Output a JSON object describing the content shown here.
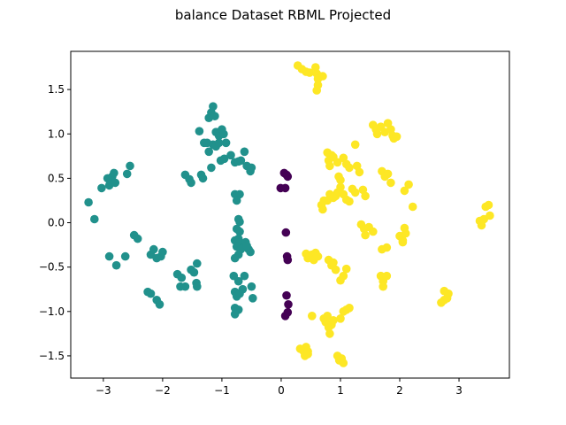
{
  "chart_data": {
    "type": "scatter",
    "title": "balance Dataset RBML Projected",
    "xlabel": "",
    "ylabel": "",
    "xlim": [
      -3.55,
      3.85
    ],
    "ylim": [
      -1.75,
      1.93
    ],
    "xticks": [
      -3,
      -2,
      -1,
      0,
      1,
      2,
      3
    ],
    "yticks": [
      -1.5,
      -1.0,
      -0.5,
      0.0,
      0.5,
      1.0,
      1.5
    ],
    "xtick_labels": [
      "−3",
      "−2",
      "−1",
      "0",
      "1",
      "2",
      "3"
    ],
    "ytick_labels": [
      "−1.5",
      "−1.0",
      "−0.5",
      "0.0",
      "0.5",
      "1.0",
      "1.5"
    ],
    "grid": false,
    "colors": {
      "purple": "#440154",
      "teal": "#21918c",
      "yellow": "#fde725"
    },
    "series": [
      {
        "color": "purple",
        "points": [
          [
            0.05,
            0.56
          ],
          [
            0.09,
            0.54
          ],
          [
            0.11,
            0.52
          ],
          [
            -0.01,
            0.39
          ],
          [
            0.07,
            0.39
          ],
          [
            0.08,
            -0.11
          ],
          [
            0.1,
            -0.38
          ],
          [
            0.11,
            -0.42
          ],
          [
            0.09,
            -0.82
          ],
          [
            0.12,
            -0.92
          ],
          [
            0.11,
            -1.01
          ],
          [
            0.07,
            -1.05
          ]
        ]
      },
      {
        "color": "teal",
        "points": [
          [
            -3.25,
            0.23
          ],
          [
            -3.15,
            0.04
          ],
          [
            -3.03,
            0.39
          ],
          [
            -2.93,
            0.5
          ],
          [
            -2.9,
            0.42
          ],
          [
            -2.88,
            0.47
          ],
          [
            -2.85,
            0.52
          ],
          [
            -2.82,
            0.56
          ],
          [
            -2.8,
            0.45
          ],
          [
            -2.9,
            -0.38
          ],
          [
            -2.78,
            -0.48
          ],
          [
            -2.63,
            -0.38
          ],
          [
            -2.6,
            0.55
          ],
          [
            -2.55,
            0.64
          ],
          [
            -2.48,
            -0.14
          ],
          [
            -2.42,
            -0.18
          ],
          [
            -2.2,
            -0.36
          ],
          [
            -2.15,
            -0.3
          ],
          [
            -2.1,
            -0.4
          ],
          [
            -2.03,
            -0.38
          ],
          [
            -2.0,
            -0.33
          ],
          [
            -2.25,
            -0.78
          ],
          [
            -2.2,
            -0.8
          ],
          [
            -2.1,
            -0.87
          ],
          [
            -2.05,
            -0.92
          ],
          [
            -1.75,
            -0.58
          ],
          [
            -1.7,
            -0.72
          ],
          [
            -1.62,
            -0.72
          ],
          [
            -1.68,
            -0.62
          ],
          [
            -1.52,
            -0.53
          ],
          [
            -1.47,
            -0.56
          ],
          [
            -1.42,
            -0.46
          ],
          [
            -1.43,
            -0.68
          ],
          [
            -1.42,
            -0.72
          ],
          [
            -1.62,
            0.54
          ],
          [
            -1.55,
            0.49
          ],
          [
            -1.52,
            0.45
          ],
          [
            -1.35,
            0.54
          ],
          [
            -1.32,
            0.5
          ],
          [
            -1.38,
            1.03
          ],
          [
            -1.3,
            0.9
          ],
          [
            -1.25,
            0.9
          ],
          [
            -1.22,
            0.8
          ],
          [
            -1.22,
            1.18
          ],
          [
            -1.18,
            1.24
          ],
          [
            -1.15,
            1.31
          ],
          [
            -1.12,
            1.2
          ],
          [
            -1.15,
            0.88
          ],
          [
            -1.1,
            1.02
          ],
          [
            -1.1,
            0.86
          ],
          [
            -1.05,
            0.98
          ],
          [
            -1.0,
            1.05
          ],
          [
            -0.97,
            1.0
          ],
          [
            -0.96,
            0.72
          ],
          [
            -0.93,
            0.9
          ],
          [
            -1.02,
            0.7
          ],
          [
            -1.05,
            0.9
          ],
          [
            -1.18,
            0.62
          ],
          [
            -0.85,
            0.76
          ],
          [
            -0.78,
            0.68
          ],
          [
            -0.72,
            0.69
          ],
          [
            -0.68,
            0.7
          ],
          [
            -0.62,
            0.8
          ],
          [
            -0.58,
            0.64
          ],
          [
            -0.52,
            0.58
          ],
          [
            -0.5,
            0.62
          ],
          [
            -0.78,
            0.32
          ],
          [
            -0.74,
            0.3
          ],
          [
            -0.7,
            0.32
          ],
          [
            -0.75,
            0.25
          ],
          [
            -0.72,
            0.04
          ],
          [
            -0.7,
            0.01
          ],
          [
            -0.75,
            -0.07
          ],
          [
            -0.72,
            -0.18
          ],
          [
            -0.78,
            -0.2
          ],
          [
            -0.7,
            -0.23
          ],
          [
            -0.75,
            -0.27
          ],
          [
            -0.68,
            -0.3
          ],
          [
            -0.72,
            -0.36
          ],
          [
            -0.78,
            -0.4
          ],
          [
            -0.6,
            -0.22
          ],
          [
            -0.55,
            -0.3
          ],
          [
            -0.52,
            -0.33
          ],
          [
            -0.58,
            -0.26
          ],
          [
            -0.7,
            -0.1
          ],
          [
            -0.8,
            -0.6
          ],
          [
            -0.72,
            -0.66
          ],
          [
            -0.78,
            -0.78
          ],
          [
            -0.75,
            -0.83
          ],
          [
            -0.7,
            -0.8
          ],
          [
            -0.62,
            -0.6
          ],
          [
            -0.5,
            -0.72
          ],
          [
            -0.48,
            -0.85
          ],
          [
            -0.78,
            -0.96
          ],
          [
            -0.72,
            -0.98
          ],
          [
            -0.78,
            -1.03
          ],
          [
            -0.65,
            -0.75
          ]
        ]
      },
      {
        "color": "yellow",
        "points": [
          [
            0.28,
            1.77
          ],
          [
            0.35,
            1.73
          ],
          [
            0.42,
            1.7
          ],
          [
            0.48,
            1.69
          ],
          [
            0.58,
            1.75
          ],
          [
            0.6,
            1.68
          ],
          [
            0.62,
            1.62
          ],
          [
            0.6,
            1.49
          ],
          [
            0.62,
            1.55
          ],
          [
            0.7,
            1.65
          ],
          [
            0.78,
            0.79
          ],
          [
            0.8,
            0.7
          ],
          [
            0.85,
            0.76
          ],
          [
            0.82,
            0.64
          ],
          [
            0.88,
            0.74
          ],
          [
            0.95,
            0.68
          ],
          [
            0.97,
            0.52
          ],
          [
            1.0,
            0.48
          ],
          [
            1.05,
            0.73
          ],
          [
            1.1,
            0.66
          ],
          [
            1.15,
            0.62
          ],
          [
            1.25,
            0.88
          ],
          [
            1.28,
            0.64
          ],
          [
            1.32,
            0.57
          ],
          [
            1.38,
            0.37
          ],
          [
            1.42,
            0.3
          ],
          [
            1.2,
            0.38
          ],
          [
            1.15,
            0.24
          ],
          [
            1.1,
            0.26
          ],
          [
            1.25,
            0.34
          ],
          [
            1.05,
            0.32
          ],
          [
            1.0,
            0.4
          ],
          [
            0.95,
            0.34
          ],
          [
            0.92,
            0.3
          ],
          [
            0.88,
            0.28
          ],
          [
            0.82,
            0.32
          ],
          [
            0.78,
            0.25
          ],
          [
            0.72,
            0.25
          ],
          [
            0.68,
            0.2
          ],
          [
            0.7,
            0.15
          ],
          [
            1.55,
            1.1
          ],
          [
            1.6,
            1.05
          ],
          [
            1.62,
            1.0
          ],
          [
            1.68,
            1.08
          ],
          [
            1.75,
            1.02
          ],
          [
            1.8,
            1.12
          ],
          [
            1.85,
            1.05
          ],
          [
            1.88,
            0.98
          ],
          [
            1.9,
            0.95
          ],
          [
            1.95,
            0.97
          ],
          [
            1.7,
            0.58
          ],
          [
            1.75,
            0.52
          ],
          [
            1.8,
            0.55
          ],
          [
            1.85,
            0.45
          ],
          [
            2.08,
            0.36
          ],
          [
            2.15,
            0.43
          ],
          [
            2.22,
            0.18
          ],
          [
            1.35,
            -0.02
          ],
          [
            1.4,
            -0.07
          ],
          [
            1.42,
            -0.14
          ],
          [
            1.48,
            -0.05
          ],
          [
            1.55,
            -0.1
          ],
          [
            1.7,
            -0.3
          ],
          [
            1.78,
            -0.28
          ],
          [
            2.0,
            -0.15
          ],
          [
            2.05,
            -0.2
          ],
          [
            2.08,
            -0.06
          ],
          [
            2.1,
            -0.12
          ],
          [
            2.05,
            -0.22
          ],
          [
            0.42,
            -0.35
          ],
          [
            0.45,
            -0.4
          ],
          [
            0.48,
            -0.38
          ],
          [
            0.52,
            -0.36
          ],
          [
            0.55,
            -0.42
          ],
          [
            0.58,
            -0.34
          ],
          [
            0.62,
            -0.38
          ],
          [
            0.8,
            -0.42
          ],
          [
            0.85,
            -0.48
          ],
          [
            0.88,
            -0.45
          ],
          [
            0.92,
            -0.53
          ],
          [
            1.0,
            -0.65
          ],
          [
            1.05,
            -0.6
          ],
          [
            1.1,
            -0.52
          ],
          [
            1.68,
            -0.6
          ],
          [
            1.72,
            -0.66
          ],
          [
            1.78,
            -0.6
          ],
          [
            1.72,
            -0.72
          ],
          [
            0.52,
            -1.05
          ],
          [
            0.72,
            -1.08
          ],
          [
            0.75,
            -1.12
          ],
          [
            0.78,
            -1.05
          ],
          [
            0.8,
            -1.18
          ],
          [
            0.82,
            -1.25
          ],
          [
            0.85,
            -1.15
          ],
          [
            0.88,
            -1.1
          ],
          [
            1.0,
            -1.08
          ],
          [
            1.05,
            -1.0
          ],
          [
            1.1,
            -0.98
          ],
          [
            1.15,
            -0.96
          ],
          [
            0.95,
            -1.5
          ],
          [
            0.98,
            -1.55
          ],
          [
            1.02,
            -1.53
          ],
          [
            1.05,
            -1.58
          ],
          [
            0.32,
            -1.42
          ],
          [
            0.38,
            -1.45
          ],
          [
            0.42,
            -1.4
          ],
          [
            0.45,
            -1.45
          ],
          [
            0.4,
            -1.5
          ],
          [
            0.45,
            -1.48
          ],
          [
            2.7,
            -0.9
          ],
          [
            2.75,
            -0.87
          ],
          [
            2.8,
            -0.85
          ],
          [
            2.82,
            -0.8
          ],
          [
            2.75,
            -0.77
          ],
          [
            3.35,
            0.02
          ],
          [
            3.38,
            -0.03
          ],
          [
            3.42,
            0.04
          ],
          [
            3.45,
            0.18
          ],
          [
            3.5,
            0.2
          ],
          [
            3.52,
            0.08
          ]
        ]
      }
    ]
  }
}
